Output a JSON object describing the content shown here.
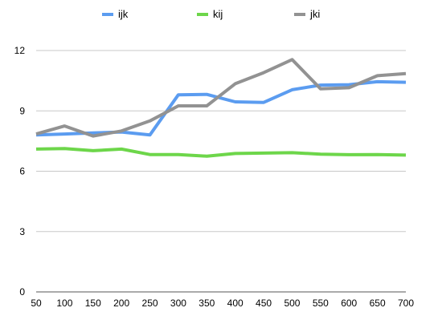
{
  "chart_data": {
    "type": "line",
    "title": "",
    "xlabel": "",
    "ylabel": "",
    "x": [
      50,
      100,
      150,
      200,
      250,
      300,
      350,
      400,
      450,
      500,
      550,
      600,
      650,
      700
    ],
    "ylim": [
      0,
      12
    ],
    "yticks": [
      0,
      3,
      6,
      9,
      12
    ],
    "grid": "horizontal",
    "legend_position": "top",
    "series": [
      {
        "name": "ijk",
        "color": "#5b9cf0",
        "values": [
          7.8,
          7.85,
          7.9,
          7.95,
          7.8,
          9.8,
          9.82,
          9.45,
          9.42,
          10.05,
          10.28,
          10.3,
          10.45,
          10.42
        ]
      },
      {
        "name": "kij",
        "color": "#6dd64a",
        "values": [
          7.1,
          7.13,
          7.02,
          7.1,
          6.83,
          6.83,
          6.75,
          6.88,
          6.9,
          6.92,
          6.85,
          6.82,
          6.83,
          6.8
        ]
      },
      {
        "name": "jki",
        "color": "#929292",
        "values": [
          7.85,
          8.25,
          7.75,
          8.0,
          8.5,
          9.25,
          9.25,
          10.35,
          10.9,
          11.55,
          10.1,
          10.15,
          10.75,
          10.85
        ]
      }
    ]
  }
}
